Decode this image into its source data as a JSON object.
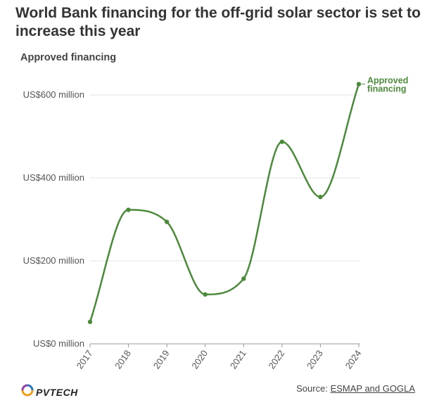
{
  "title": "World Bank financing for the off-grid solar sector is set to increase this year",
  "subtitle": "Approved financing",
  "colors": {
    "line": "#4b8a3b",
    "grid": "#e3e3e3",
    "axis": "#999999"
  },
  "chart_data": {
    "type": "line",
    "x": [
      "2017",
      "2018",
      "2019",
      "2020",
      "2021",
      "2022",
      "2023",
      "2024"
    ],
    "series": [
      {
        "name": "Approved financing",
        "values": [
          53,
          323,
          294,
          119,
          157,
          487,
          354,
          626
        ]
      }
    ],
    "yticks": [
      0,
      200,
      400,
      600
    ],
    "ytick_labels": [
      "US$0 million",
      "US$200 million",
      "US$400 million",
      "US$600 million"
    ],
    "ylim": [
      0,
      650
    ],
    "grid": true,
    "series_label_lines": [
      "Approved",
      "financing"
    ]
  },
  "footer": {
    "logo_text": "PVTECH",
    "logo_icon": "pvtech-logo-icon",
    "source_prefix": "Source: ",
    "source_link": "ESMAP and GOGLA"
  }
}
